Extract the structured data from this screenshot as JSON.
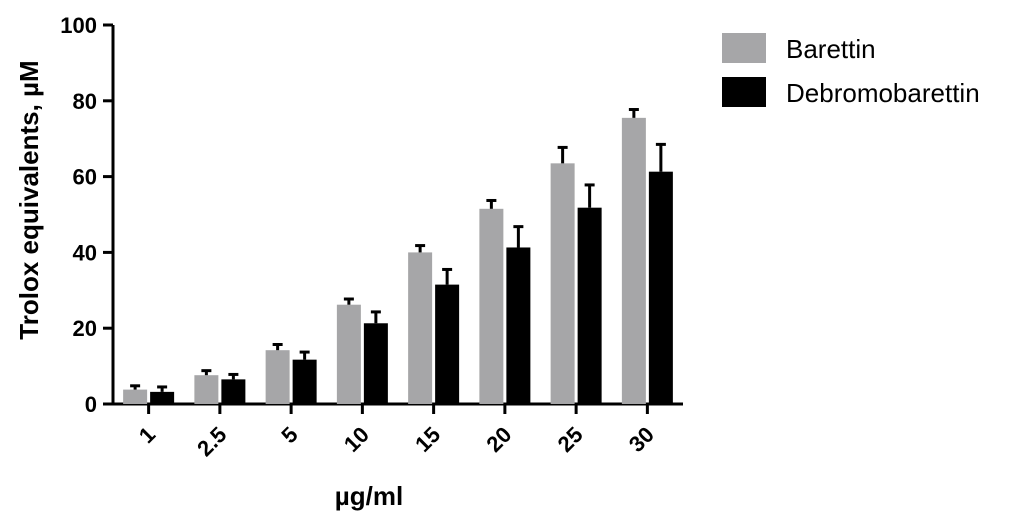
{
  "chart_data": {
    "type": "bar",
    "title": "",
    "xlabel": "µg/ml",
    "ylabel": "Trolox equivalents, µM",
    "categories": [
      "1",
      "2.5",
      "5",
      "10",
      "15",
      "20",
      "25",
      "30"
    ],
    "ylim": [
      0,
      100
    ],
    "yticks": [
      0,
      20,
      40,
      60,
      80,
      100
    ],
    "grid": false,
    "legend_position": "top-right",
    "series": [
      {
        "name": "Barettin",
        "color": "#a6a6a8",
        "values": [
          3.8,
          7.6,
          14.2,
          26.2,
          40.0,
          51.5,
          63.5,
          75.5
        ],
        "errors": [
          1.0,
          1.2,
          1.5,
          1.5,
          1.8,
          2.2,
          4.2,
          2.2
        ]
      },
      {
        "name": "Debromobarettin",
        "color": "#000000",
        "values": [
          3.2,
          6.5,
          11.7,
          21.3,
          31.5,
          41.3,
          51.8,
          61.3
        ],
        "errors": [
          1.3,
          1.3,
          2.0,
          3.0,
          4.0,
          5.5,
          6.0,
          7.2
        ]
      }
    ]
  }
}
